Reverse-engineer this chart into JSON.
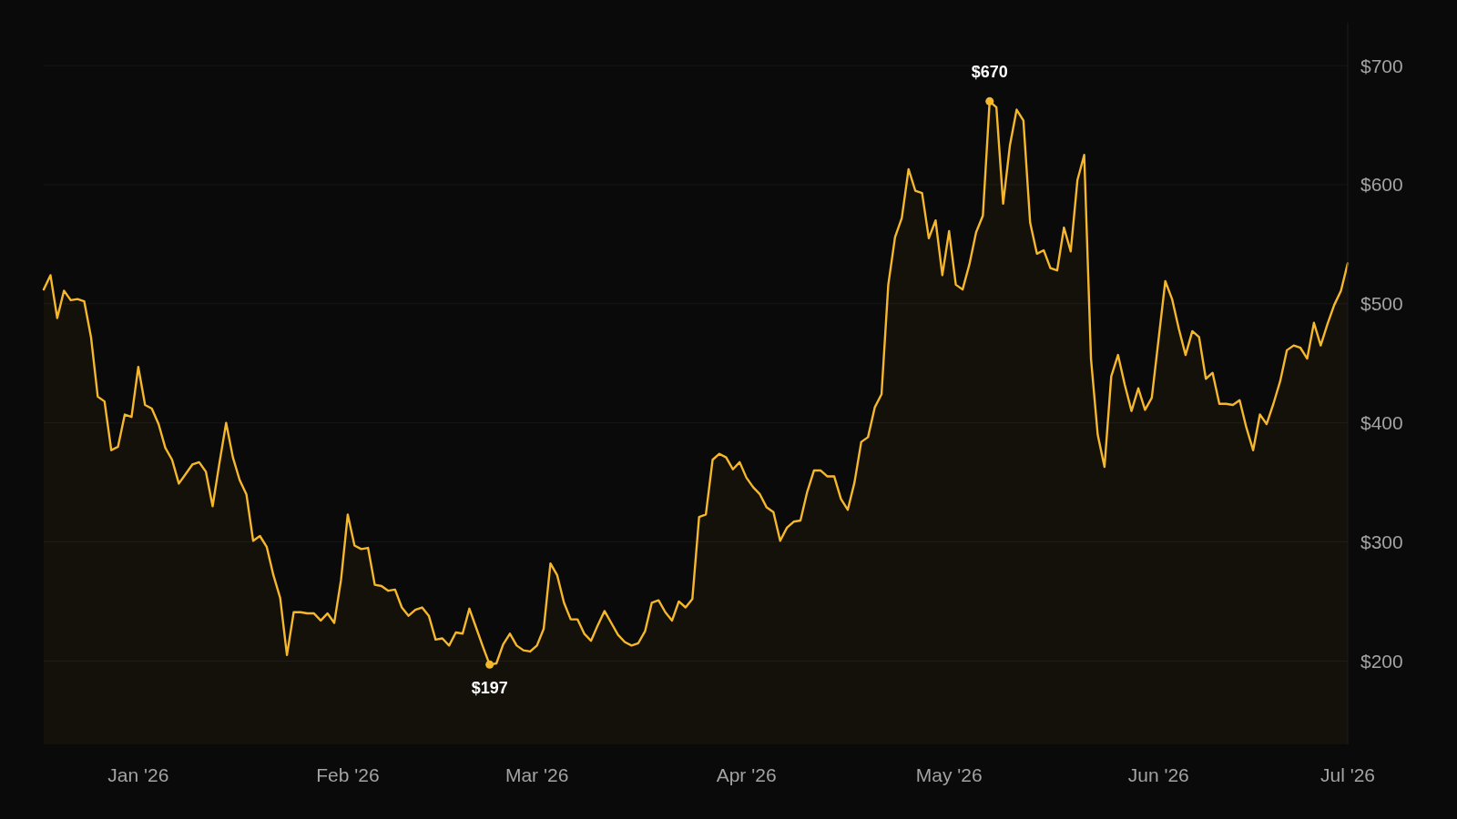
{
  "chart_data": {
    "type": "area",
    "categories": [
      null,
      null,
      null,
      null,
      null,
      null,
      null,
      null,
      null,
      null,
      null,
      null,
      null,
      null,
      "Jan '26",
      null,
      null,
      null,
      null,
      null,
      null,
      null,
      null,
      null,
      null,
      null,
      null,
      null,
      null,
      null,
      null,
      null,
      null,
      null,
      null,
      null,
      null,
      null,
      null,
      null,
      null,
      null,
      null,
      null,
      null,
      "Feb '26",
      null,
      null,
      null,
      null,
      null,
      null,
      null,
      null,
      null,
      null,
      null,
      null,
      null,
      null,
      null,
      null,
      null,
      null,
      null,
      null,
      null,
      null,
      null,
      null,
      null,
      null,
      null,
      "Mar '26",
      null,
      null,
      null,
      null,
      null,
      null,
      null,
      null,
      null,
      null,
      null,
      null,
      null,
      null,
      null,
      null,
      null,
      null,
      null,
      null,
      null,
      null,
      null,
      null,
      null,
      null,
      null,
      null,
      null,
      null,
      "Apr '26",
      null,
      null,
      null,
      null,
      null,
      null,
      null,
      null,
      null,
      null,
      null,
      null,
      null,
      null,
      null,
      null,
      null,
      null,
      null,
      null,
      null,
      null,
      null,
      null,
      null,
      null,
      null,
      null,
      null,
      "May '26",
      null,
      null,
      null,
      null,
      null,
      null,
      null,
      null,
      null,
      null,
      null,
      null,
      null,
      null,
      null,
      null,
      null,
      null,
      null,
      null,
      null,
      null,
      null,
      null,
      null,
      null,
      null,
      null,
      null,
      null,
      "Jun '26",
      null,
      null,
      null,
      null,
      null,
      null,
      null,
      null,
      null,
      null,
      null,
      null,
      null,
      null,
      null,
      null,
      null,
      null,
      null,
      null,
      null,
      null,
      null,
      null,
      null,
      null,
      null,
      "Jul '26"
    ],
    "series": [
      {
        "color": "#f5b82c",
        "values": [
          512,
          524,
          488,
          511,
          503,
          504,
          502,
          472,
          422,
          418,
          377,
          380,
          407,
          405,
          447,
          415,
          412,
          399,
          379,
          369,
          349,
          357,
          365,
          367,
          359,
          330,
          366,
          400,
          371,
          352,
          340,
          301,
          305,
          296,
          272,
          253,
          205,
          241,
          241,
          240,
          240,
          234,
          240,
          232,
          268,
          323,
          297,
          294,
          295,
          264,
          263,
          259,
          260,
          245,
          238,
          243,
          245,
          238,
          218,
          219,
          213,
          224,
          223,
          244,
          228,
          212,
          197,
          198,
          214,
          223,
          213,
          209,
          208,
          213,
          227,
          282,
          272,
          249,
          235,
          235,
          223,
          217,
          230,
          242,
          232,
          222,
          216,
          213,
          215,
          225,
          249,
          251,
          241,
          234,
          250,
          245,
          252,
          321,
          323,
          369,
          374,
          371,
          361,
          367,
          354,
          346,
          340,
          329,
          325,
          301,
          312,
          317,
          318,
          342,
          360,
          360,
          355,
          355,
          336,
          327,
          350,
          384,
          388,
          413,
          424,
          516,
          556,
          572,
          613,
          595,
          593,
          555,
          570,
          524,
          561,
          516,
          512,
          533,
          560,
          574,
          670,
          665,
          584,
          633,
          663,
          654,
          568,
          542,
          545,
          530,
          528,
          564,
          544,
          604,
          625,
          454,
          390,
          363,
          439,
          457,
          432,
          410,
          429,
          411,
          421,
          470,
          519,
          504,
          479,
          457,
          477,
          472,
          437,
          442,
          416,
          416,
          415,
          419,
          396,
          377,
          407,
          399,
          416,
          435,
          461,
          465,
          463,
          454,
          484,
          465,
          483,
          499,
          511,
          534
        ]
      }
    ],
    "ylim": [
      130,
      736
    ],
    "yticks": [
      {
        "value": 200,
        "label": "$200"
      },
      {
        "value": 300,
        "label": "$300"
      },
      {
        "value": 400,
        "label": "$400"
      },
      {
        "value": 500,
        "label": "$500"
      },
      {
        "value": 600,
        "label": "$600"
      },
      {
        "value": 700,
        "label": "$700"
      }
    ],
    "grid": "y",
    "annotations": [
      {
        "text": "$197",
        "y": 197
      },
      {
        "text": "$670",
        "y": 670
      }
    ]
  }
}
